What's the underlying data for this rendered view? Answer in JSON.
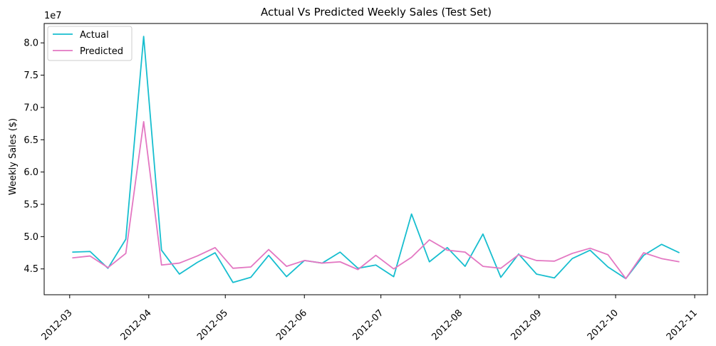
{
  "chart_data": {
    "type": "line",
    "title": "Actual Vs Predicted Weekly Sales (Test Set)",
    "xlabel": "",
    "ylabel": "Weekly Sales ($)",
    "y_offset_label": "1e7",
    "x_tick_labels": [
      "2012-03",
      "2012-04",
      "2012-05",
      "2012-06",
      "2012-07",
      "2012-08",
      "2012-09",
      "2012-10",
      "2012-11"
    ],
    "x_ticks": [
      "2012-03-01",
      "2012-04-01",
      "2012-05-01",
      "2012-06-01",
      "2012-07-01",
      "2012-08-01",
      "2012-09-01",
      "2012-10-01",
      "2012-11-01"
    ],
    "y_tick_labels": [
      "4.5",
      "5.0",
      "5.5",
      "6.0",
      "6.5",
      "7.0",
      "7.5",
      "8.0"
    ],
    "y_ticks": [
      45000000,
      50000000,
      55000000,
      60000000,
      65000000,
      70000000,
      75000000,
      80000000
    ],
    "xlim": [
      "2012-02-20",
      "2012-11-06"
    ],
    "ylim": [
      41000000,
      83000000
    ],
    "grid": false,
    "legend_position": "top-left",
    "x": [
      "2012-03-02",
      "2012-03-09",
      "2012-03-16",
      "2012-03-23",
      "2012-03-30",
      "2012-04-06",
      "2012-04-13",
      "2012-04-20",
      "2012-04-27",
      "2012-05-04",
      "2012-05-11",
      "2012-05-18",
      "2012-05-25",
      "2012-06-01",
      "2012-06-08",
      "2012-06-15",
      "2012-06-22",
      "2012-06-29",
      "2012-07-06",
      "2012-07-13",
      "2012-07-20",
      "2012-07-27",
      "2012-08-03",
      "2012-08-10",
      "2012-08-17",
      "2012-08-24",
      "2012-08-31",
      "2012-09-07",
      "2012-09-14",
      "2012-09-21",
      "2012-09-28",
      "2012-10-05",
      "2012-10-12",
      "2012-10-19",
      "2012-10-26"
    ],
    "series": [
      {
        "name": "Actual",
        "color": "#17becf",
        "values": [
          47600000,
          47700000,
          45100000,
          49600000,
          81000000,
          47900000,
          44200000,
          46000000,
          47500000,
          42900000,
          43700000,
          47100000,
          43800000,
          46300000,
          45900000,
          47600000,
          45100000,
          45600000,
          43800000,
          53500000,
          46100000,
          48300000,
          45400000,
          50400000,
          43700000,
          47300000,
          44200000,
          43600000,
          46600000,
          47900000,
          45300000,
          43500000,
          47100000,
          48800000,
          47500000
        ]
      },
      {
        "name": "Predicted",
        "color": "#e377c2",
        "values": [
          46700000,
          47000000,
          45200000,
          47400000,
          67800000,
          45600000,
          45900000,
          47000000,
          48300000,
          45100000,
          45300000,
          48000000,
          45400000,
          46300000,
          45900000,
          46100000,
          44900000,
          47100000,
          45000000,
          46800000,
          49500000,
          47900000,
          47600000,
          45400000,
          45100000,
          47200000,
          46300000,
          46200000,
          47400000,
          48200000,
          47200000,
          43500000,
          47500000,
          46600000,
          46100000
        ]
      }
    ]
  }
}
